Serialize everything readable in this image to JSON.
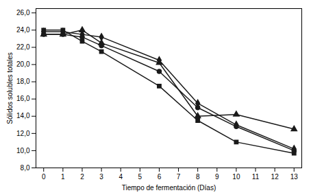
{
  "chart_data": {
    "type": "line",
    "x": [
      0,
      1,
      2,
      3,
      6,
      8,
      10,
      13
    ],
    "series": [
      {
        "marker": "diamond",
        "values": [
          23.8,
          23.8,
          23.5,
          23.2,
          20.5,
          15.5,
          13.0,
          10.2
        ]
      },
      {
        "marker": "square",
        "values": [
          24.0,
          24.0,
          22.7,
          21.5,
          17.5,
          13.5,
          11.0,
          9.7
        ]
      },
      {
        "marker": "circle",
        "values": [
          23.5,
          23.5,
          23.2,
          22.2,
          19.2,
          15.0,
          12.8,
          10.0
        ]
      },
      {
        "marker": "triangle",
        "values": [
          23.5,
          23.5,
          24.0,
          22.5,
          20.2,
          14.0,
          14.2,
          12.5
        ]
      }
    ],
    "color": "#1a1a1a",
    "xlabel": "Tiempo de fermentación (Días)",
    "ylabel": "Sólidos solubles totales",
    "xlim": [
      -0.4,
      13.4
    ],
    "ylim": [
      8.0,
      26.5
    ],
    "xticks": [
      0,
      1,
      2,
      3,
      4,
      5,
      6,
      7,
      8,
      9,
      10,
      11,
      12,
      13
    ],
    "yticks": [
      {
        "value": 8,
        "label": "8,0"
      },
      {
        "value": 10,
        "label": "10,0"
      },
      {
        "value": 12,
        "label": "12,0"
      },
      {
        "value": 14,
        "label": "14,0"
      },
      {
        "value": 16,
        "label": "16,0"
      },
      {
        "value": 18,
        "label": "18,0"
      },
      {
        "value": 20,
        "label": "20,0"
      },
      {
        "value": 22,
        "label": "22,0"
      },
      {
        "value": 24,
        "label": "24,0"
      },
      {
        "value": 26,
        "label": "26,0"
      }
    ],
    "grid": false
  }
}
